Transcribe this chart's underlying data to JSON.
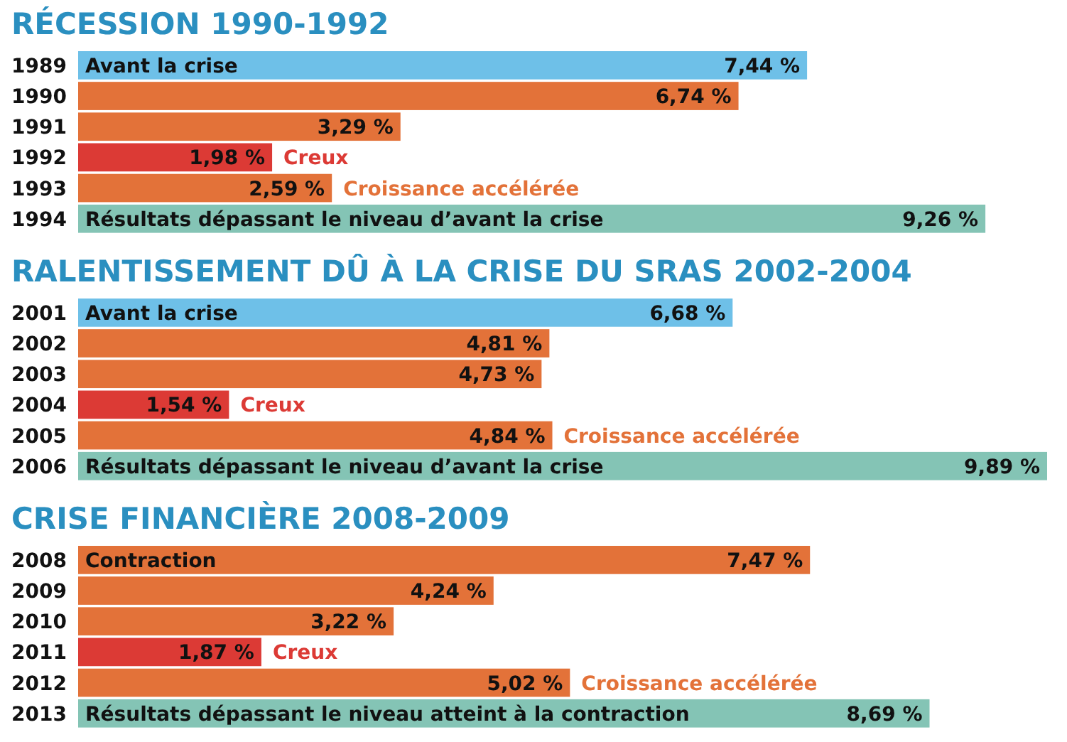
{
  "chart_data": [
    {
      "type": "bar",
      "orientation": "horizontal",
      "title": "RÉCESSION 1990-1992",
      "categories": [
        "1989",
        "1990",
        "1991",
        "1992",
        "1993",
        "1994"
      ],
      "values": [
        7.44,
        6.74,
        3.29,
        1.98,
        2.59,
        9.26
      ],
      "colors": [
        "#6ec0e8",
        "#e37239",
        "#e37239",
        "#dc3a35",
        "#e37239",
        "#84c4b5"
      ],
      "value_labels": [
        "7,44 %",
        "6,74 %",
        "3,29 %",
        "1,98 %",
        "2,59 %",
        "9,26 %"
      ],
      "annotations": [
        {
          "text": "Avant la crise",
          "x": 0,
          "y": "1989"
        },
        {
          "text": "Creux",
          "x": 1.98,
          "y": "1992"
        },
        {
          "text": "Croissance accélérée",
          "x": 2.59,
          "y": "1993"
        },
        {
          "text": "Résultats dépassant le niveau d’avant la crise",
          "x": 0,
          "y": "1994"
        }
      ]
    },
    {
      "type": "bar",
      "orientation": "horizontal",
      "title": "RALENTISSEMENT DÛ À LA CRISE DU SRAS 2002-2004",
      "categories": [
        "2001",
        "2002",
        "2003",
        "2004",
        "2005",
        "2006"
      ],
      "values": [
        6.68,
        4.81,
        4.73,
        1.54,
        4.84,
        9.89
      ],
      "colors": [
        "#6ec0e8",
        "#e37239",
        "#e37239",
        "#dc3a35",
        "#e37239",
        "#84c4b5"
      ],
      "value_labels": [
        "6,68 %",
        "4,81 %",
        "4,73 %",
        "1,54 %",
        "4,84 %",
        "9,89 %"
      ],
      "annotations": [
        {
          "text": "Avant la crise",
          "x": 0,
          "y": "2001"
        },
        {
          "text": "Creux",
          "x": 1.54,
          "y": "2004"
        },
        {
          "text": "Croissance accélérée",
          "x": 4.84,
          "y": "2005"
        },
        {
          "text": "Résultats dépassant le niveau d’avant la crise",
          "x": 0,
          "y": "2006"
        }
      ]
    },
    {
      "type": "bar",
      "orientation": "horizontal",
      "title": "CRISE FINANCIÈRE 2008-2009",
      "categories": [
        "2008",
        "2009",
        "2010",
        "2011",
        "2012",
        "2013"
      ],
      "values": [
        7.47,
        4.24,
        3.22,
        1.87,
        5.02,
        8.69
      ],
      "colors": [
        "#e37239",
        "#e37239",
        "#e37239",
        "#dc3a35",
        "#e37239",
        "#84c4b5"
      ],
      "value_labels": [
        "7,47 %",
        "4,24 %",
        "3,22 %",
        "1,87 %",
        "5,02 %",
        "8,69 %"
      ],
      "annotations": [
        {
          "text": "Contraction",
          "x": 0,
          "y": "2008"
        },
        {
          "text": "Creux",
          "x": 1.87,
          "y": "2011"
        },
        {
          "text": "Croissance accélérée",
          "x": 5.02,
          "y": "2012"
        },
        {
          "text": "Résultats dépassant le niveau atteint à la contraction",
          "x": 0,
          "y": "2013"
        }
      ]
    }
  ]
}
